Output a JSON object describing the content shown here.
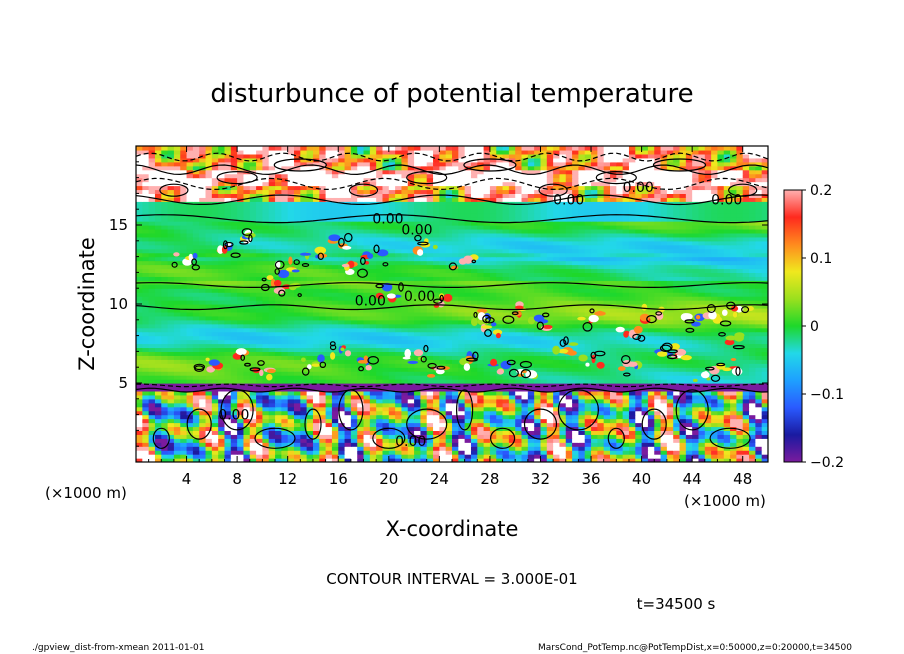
{
  "chart_data": {
    "type": "heatmap",
    "title": "disturbunce of potential temperature",
    "xlabel": "X-coordinate",
    "ylabel": "Z-coordinate",
    "x_unit": "(×1000 m)",
    "y_unit": "(×1000 m)",
    "xlim": [
      0,
      50
    ],
    "ylim": [
      0,
      20
    ],
    "xticks": [
      "4",
      "8",
      "12",
      "16",
      "20",
      "24",
      "28",
      "32",
      "36",
      "40",
      "44",
      "48"
    ],
    "yticks": [
      "5",
      "10",
      "15"
    ],
    "colorbar": {
      "range": [
        -0.2,
        0.2
      ],
      "ticks": [
        "0.2",
        "0.1",
        "0",
        "−0.1",
        "−0.2"
      ]
    },
    "contour_interval": "CONTOUR INTERVAL = 3.000E-01",
    "contour_labels": [
      "0.00"
    ],
    "time_label": "t=34500 s",
    "footer_left": "./gpview_dist-from-xmean  2011-01-01",
    "footer_right": "MarsCond_PotTemp.nc@PotTempDist,x=0:50000,z=0:20000,t=34500",
    "bands": [
      {
        "zmin": 0,
        "zmax": 4.5,
        "character": "strong mixed +/- disturbances"
      },
      {
        "zmin": 4.5,
        "zmax": 4.9,
        "character": "negative minimum (-0.2)"
      },
      {
        "zmin": 5,
        "zmax": 15,
        "character": "near zero with scattered patches"
      },
      {
        "zmin": 15,
        "zmax": 16.5,
        "character": "weakly negative"
      },
      {
        "zmin": 16.5,
        "zmax": 20,
        "character": "strong positive disturbances"
      }
    ]
  }
}
